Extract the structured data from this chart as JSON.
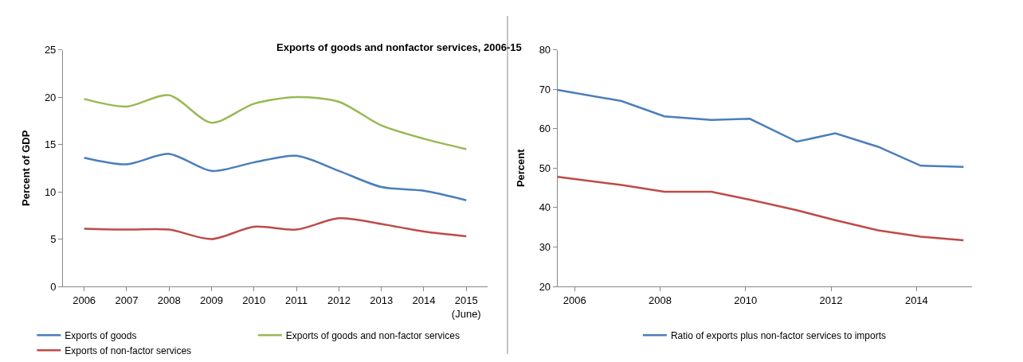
{
  "chart_data": [
    {
      "type": "line",
      "title": "Exports of goods and nonfactor services, 2006-15",
      "ylabel": "Percent of GDP",
      "categories": [
        "2006",
        "2007",
        "2008",
        "2009",
        "2010",
        "2011",
        "2012",
        "2013",
        "2014",
        "2015\n(June)"
      ],
      "ylim": [
        0,
        25
      ],
      "yticks": [
        0,
        5,
        10,
        15,
        20,
        25
      ],
      "legend": "bottom",
      "marker": "none",
      "line_style": "solid",
      "series": [
        {
          "name": "Exports of goods",
          "color": "#4a7ebb",
          "values": [
            13.6,
            12.9,
            14.0,
            12.2,
            13.1,
            13.8,
            12.2,
            10.5,
            10.1,
            9.1
          ]
        },
        {
          "name": "Exports of goods and non-factor services",
          "color": "#98b954",
          "values": [
            19.8,
            19.0,
            20.2,
            17.3,
            19.3,
            20.0,
            19.5,
            17.0,
            15.6,
            14.5
          ]
        },
        {
          "name": "Exports of non-factor services",
          "color": "#be4b48",
          "values": [
            6.1,
            6.0,
            6.0,
            5.0,
            6.3,
            6.0,
            7.2,
            6.6,
            5.8,
            5.3
          ]
        }
      ]
    },
    {
      "type": "line",
      "ylabel": "Percent",
      "xlim": [
        2005.6,
        2015.3
      ],
      "xticks": [
        2006,
        2008,
        2010,
        2012,
        2014
      ],
      "ylim": [
        20,
        80
      ],
      "yticks": [
        20,
        30,
        40,
        50,
        60,
        70,
        80
      ],
      "legend": "bottom",
      "marker": "none",
      "line_style": "solid",
      "series": [
        {
          "name": "Ratio of exports plus non-factor services to imports",
          "color": "#4a7ebb",
          "x": [
            2005.6,
            2007.1,
            2008.1,
            2009.2,
            2010.1,
            2011.2,
            2012.1,
            2013.1,
            2014.1,
            2015.1
          ],
          "values": [
            69.8,
            67.0,
            63.1,
            62.2,
            62.5,
            56.7,
            58.8,
            55.4,
            50.6,
            50.3
          ]
        },
        {
          "color": "#be4b48",
          "x": [
            2005.6,
            2007.1,
            2008.1,
            2009.2,
            2010.1,
            2011.2,
            2012.1,
            2013.1,
            2014.1,
            2015.1
          ],
          "values": [
            47.8,
            45.7,
            44.0,
            44.0,
            42.0,
            39.3,
            36.8,
            34.2,
            32.6,
            31.7
          ]
        }
      ]
    }
  ]
}
